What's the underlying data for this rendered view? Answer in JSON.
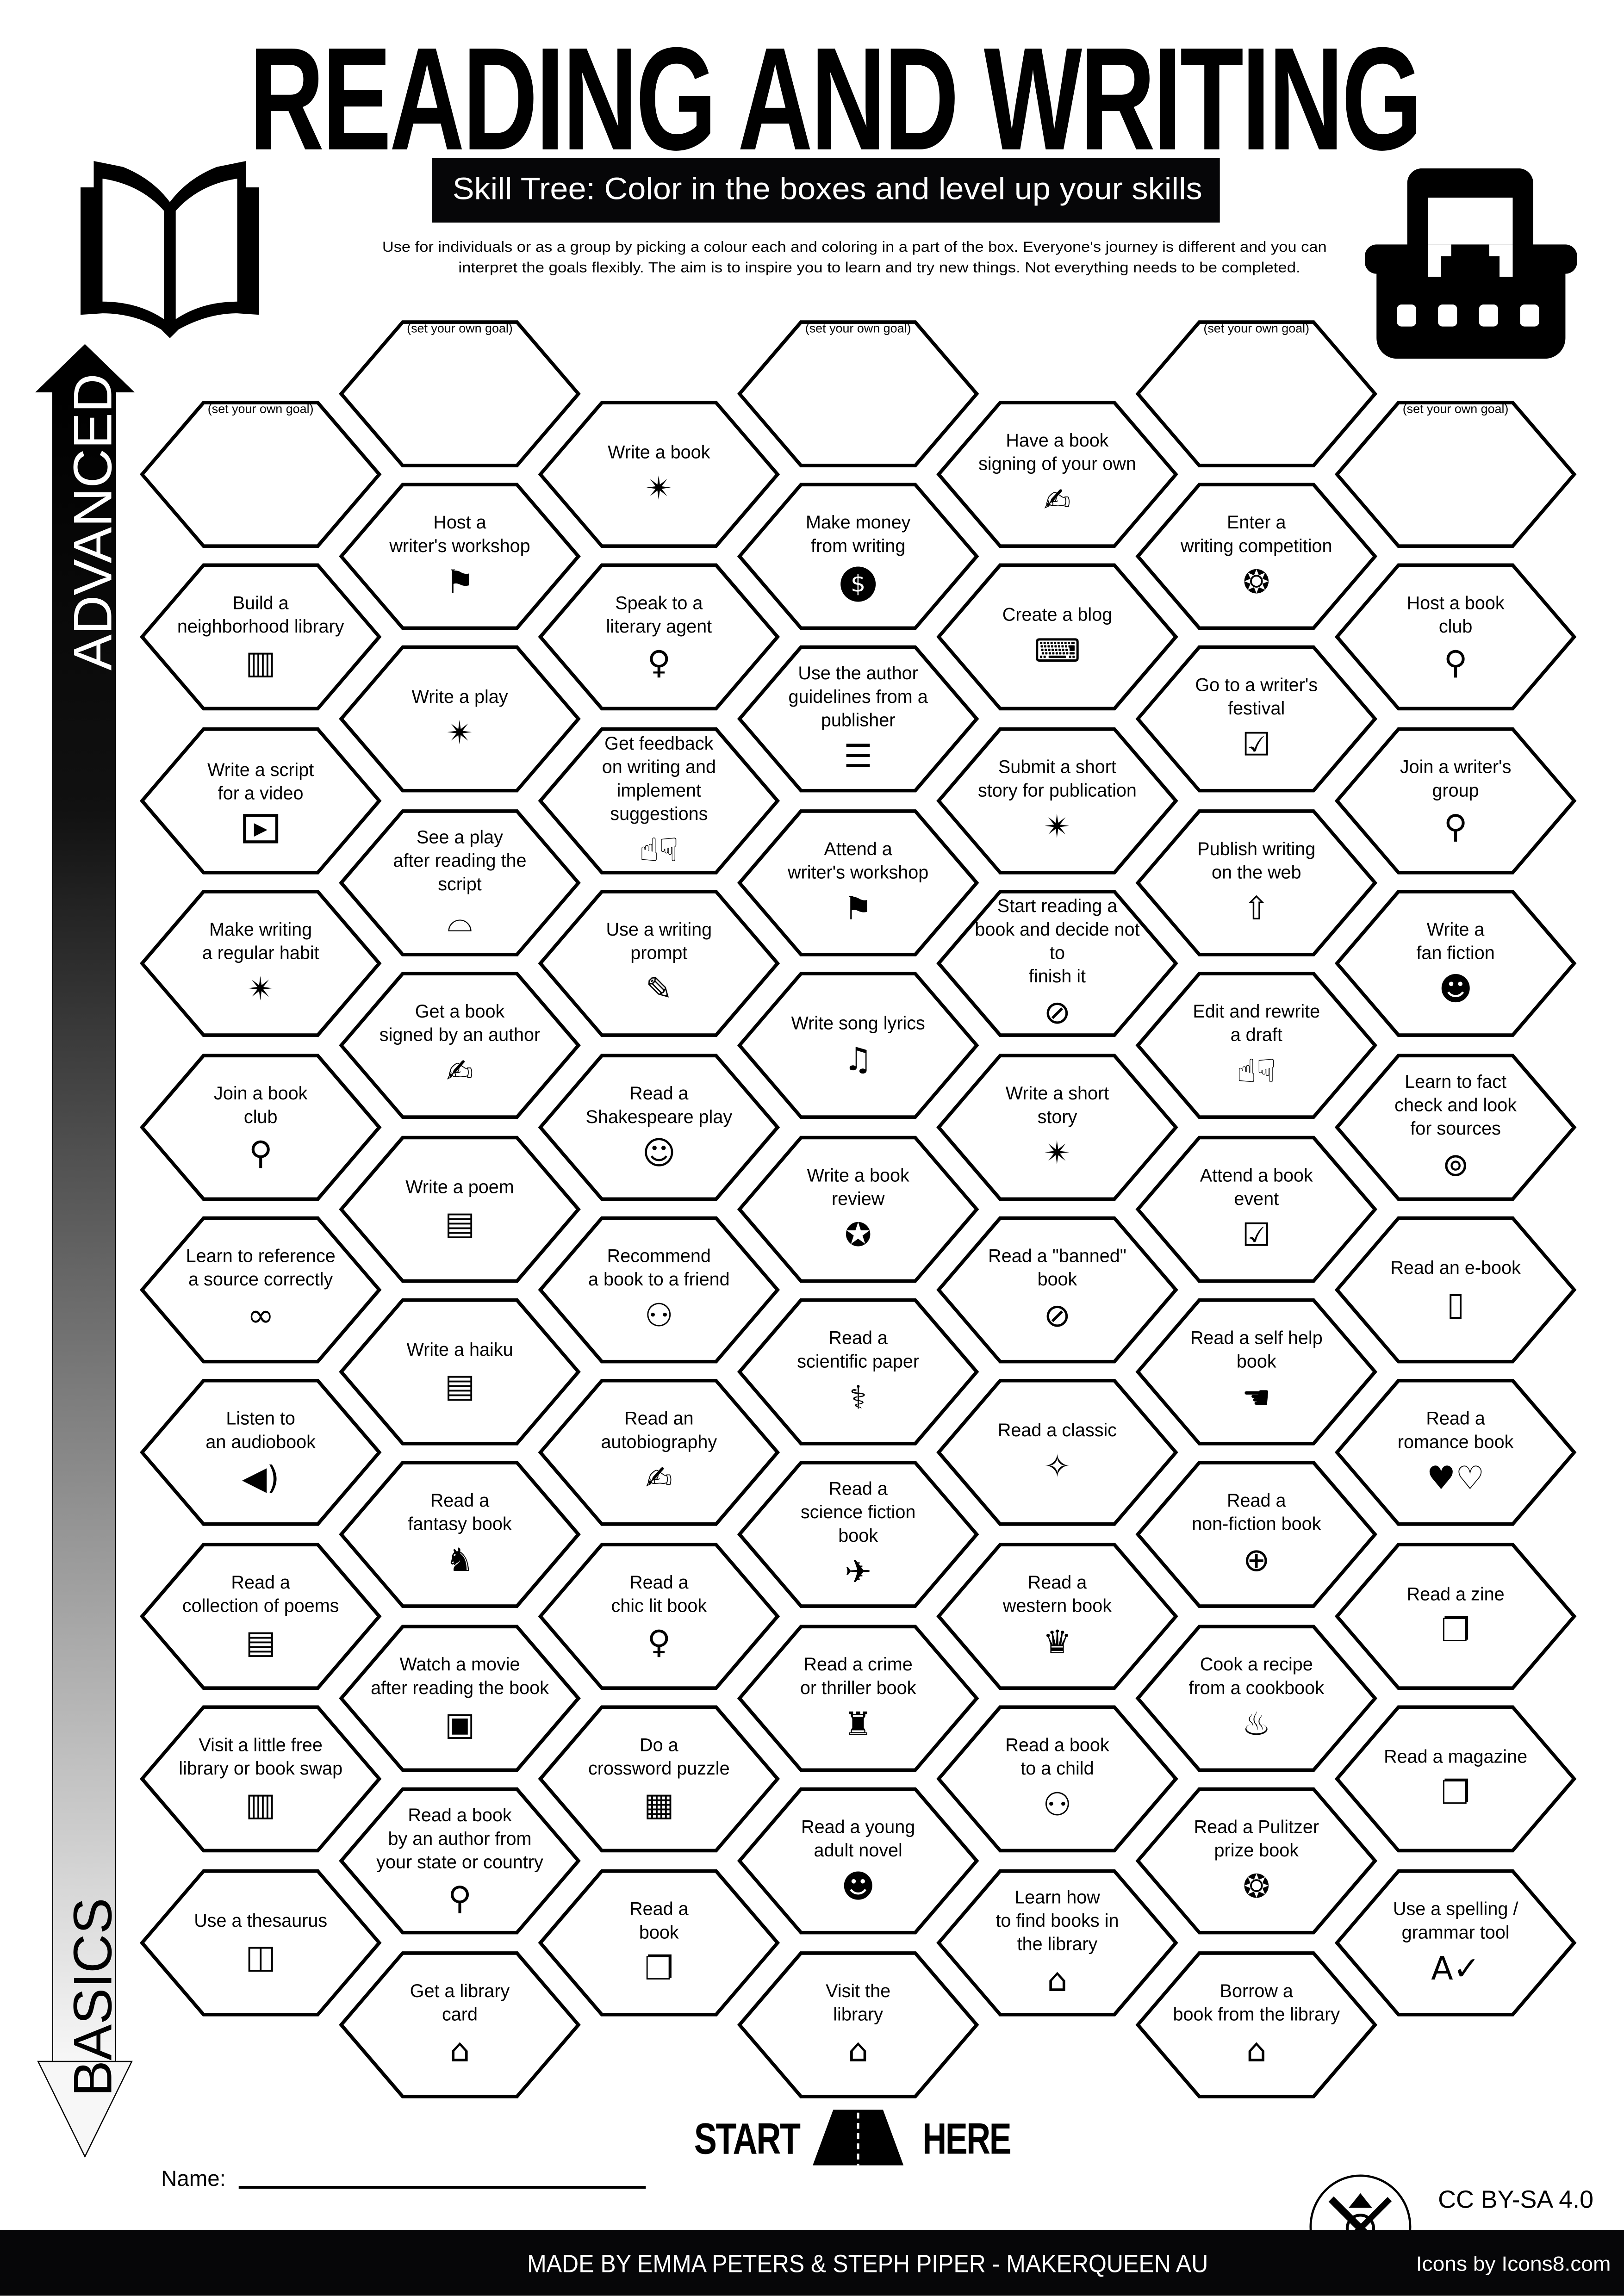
{
  "header": {
    "title": "READING AND WRITING",
    "subtitle": "Skill Tree:  Color in the boxes and level up your skills",
    "description_lines": [
      "Use for individuals or as a group by picking a colour each and coloring in a part of the box.  Everyone's journey is different and you can",
      "interpret the goals flexibly.  The aim is to inspire you to learn and try new things. Not everything needs to be completed."
    ],
    "left_icon": "open-book-icon",
    "right_icon": "typewriter-icon"
  },
  "progress_arrow": {
    "top_label": "ADVANCED",
    "bottom_label": "BASICS"
  },
  "skill_tree": {
    "columns": [
      [
        {
          "label": "(set your own goal)",
          "icon": "",
          "goal": true
        },
        {
          "label": "Build a\nneighborhood library",
          "icon": "bookshelf"
        },
        {
          "label": "Write a script\nfor a video",
          "icon": "play-video"
        },
        {
          "label": "Make writing\na regular habit",
          "icon": "book-sparkle"
        },
        {
          "label": "Join a book\nclub",
          "icon": "location-pin"
        },
        {
          "label": "Learn to reference\na source correctly",
          "icon": "link"
        },
        {
          "label": "Listen to\nan audiobook",
          "icon": "speaker"
        },
        {
          "label": "Read a\ncollection of poems",
          "icon": "poem-scroll"
        },
        {
          "label": "Visit a little free\nlibrary or book swap",
          "icon": "bookshelf"
        },
        {
          "label": "Use a thesaurus",
          "icon": "open-book"
        }
      ],
      [
        {
          "label": "(set your own goal)",
          "icon": "",
          "goal": true
        },
        {
          "label": "Host a\nwriter's workshop",
          "icon": "presentation"
        },
        {
          "label": "Write a play",
          "icon": "book-sparkle"
        },
        {
          "label": "See a play\nafter reading the\nscript",
          "icon": "theater"
        },
        {
          "label": "Get a book\nsigned by an author",
          "icon": "signature"
        },
        {
          "label": "Write a poem",
          "icon": "poem-scroll"
        },
        {
          "label": "Write a haiku",
          "icon": "poem-scroll"
        },
        {
          "label": "Read a\nfantasy book",
          "icon": "dragon"
        },
        {
          "label": "Watch a movie\nafter reading the book",
          "icon": "film"
        },
        {
          "label": "Read a book\nby an author from\nyour state or country",
          "icon": "location-pin"
        },
        {
          "label": "Get a library\ncard",
          "icon": "library"
        }
      ],
      [
        {
          "label": "Write a book",
          "icon": "book-sparkle"
        },
        {
          "label": "Speak to a\nliterary agent",
          "icon": "woman"
        },
        {
          "label": "Get feedback\non writing and\nimplement suggestions",
          "icon": "thumbs"
        },
        {
          "label": "Use a writing\nprompt",
          "icon": "pen"
        },
        {
          "label": "Read a\nShakespeare play",
          "icon": "shakespeare"
        },
        {
          "label": "Recommend\na book to a friend",
          "icon": "reading-people"
        },
        {
          "label": "Read an\nautobiography",
          "icon": "person-write"
        },
        {
          "label": "Read a\nchic lit book",
          "icon": "girl"
        },
        {
          "label": "Do a\ncrossword puzzle",
          "icon": "crossword"
        },
        {
          "label": "Read a\nbook",
          "icon": "book"
        }
      ],
      [
        {
          "label": "(set your own goal)",
          "icon": "",
          "goal": true
        },
        {
          "label": "Make money\nfrom writing",
          "icon": "money"
        },
        {
          "label": "Use the author\nguidelines from a\npublisher",
          "icon": "checklist"
        },
        {
          "label": "Attend a\nwriter's workshop",
          "icon": "presentation"
        },
        {
          "label": "Write song lyrics",
          "icon": "lyrics"
        },
        {
          "label": "Write a book\nreview",
          "icon": "review-star"
        },
        {
          "label": "Read a\nscientific paper",
          "icon": "dna"
        },
        {
          "label": "Read a\nscience fiction\nbook",
          "icon": "rocket"
        },
        {
          "label": "Read a crime\nor thriller book",
          "icon": "detective"
        },
        {
          "label": "Read a young\nadult novel",
          "icon": "young-adult"
        },
        {
          "label": "Visit the\nlibrary",
          "icon": "library"
        }
      ],
      [
        {
          "label": "Have a book\nsigning of your own",
          "icon": "signature"
        },
        {
          "label": "Create a blog",
          "icon": "typewriter"
        },
        {
          "label": "Submit a short\nstory for publication",
          "icon": "book-sparkle"
        },
        {
          "label": "Start reading a\nbook and decide not to\nfinish it",
          "icon": "no-book"
        },
        {
          "label": "Write a short\nstory",
          "icon": "book-sparkle"
        },
        {
          "label": "Read a \"banned\"\nbook",
          "icon": "no-book"
        },
        {
          "label": "Read a classic",
          "icon": "classic-book"
        },
        {
          "label": "Read a\nwestern book",
          "icon": "cowboy"
        },
        {
          "label": "Read a book\nto a child",
          "icon": "reading-people"
        },
        {
          "label": "Learn how\nto find books in\nthe library",
          "icon": "library"
        }
      ],
      [
        {
          "label": "(set your own goal)",
          "icon": "",
          "goal": true
        },
        {
          "label": "Enter a\nwriting competition",
          "icon": "award"
        },
        {
          "label": "Go to a writer's\nfestival",
          "icon": "calendar"
        },
        {
          "label": "Publish writing\non the web",
          "icon": "upload"
        },
        {
          "label": "Edit and rewrite\na draft",
          "icon": "thumbs"
        },
        {
          "label": "Attend a book\nevent",
          "icon": "calendar"
        },
        {
          "label": "Read a self help\nbook",
          "icon": "hand-heart"
        },
        {
          "label": "Read a\nnon-fiction book",
          "icon": "globe"
        },
        {
          "label": "Cook a recipe\nfrom a cookbook",
          "icon": "cooking-pot"
        },
        {
          "label": "Read a Pulitzer\nprize book",
          "icon": "award"
        },
        {
          "label": "Borrow a\nbook from the library",
          "icon": "library"
        }
      ],
      [
        {
          "label": "(set your own goal)",
          "icon": "",
          "goal": true
        },
        {
          "label": "Host a book\nclub",
          "icon": "location-pin"
        },
        {
          "label": "Join a writer's\ngroup",
          "icon": "location-pin"
        },
        {
          "label": "Write a\nfan fiction",
          "icon": "vampire"
        },
        {
          "label": "Learn to fact\ncheck and look\nfor sources",
          "icon": "magnifier"
        },
        {
          "label": "Read an e-book",
          "icon": "ebook"
        },
        {
          "label": "Read a\nromance book",
          "icon": "hearts"
        },
        {
          "label": "Read a zine",
          "icon": "book"
        },
        {
          "label": "Read a magazine",
          "icon": "book"
        },
        {
          "label": "Use a spelling /\ngrammar tool",
          "icon": "spell-check"
        }
      ]
    ]
  },
  "start": {
    "left": "START",
    "right": "HERE",
    "icon": "road-icon"
  },
  "name_field": {
    "label": "Name:",
    "value": ""
  },
  "license": "CC BY-SA 4.0",
  "footer": {
    "credit": "MADE BY EMMA PETERS & STEPH PIPER  -  MAKERQUEEN AU",
    "icons_credit": "Icons by Icons8.com",
    "logo": "makerqueen-logo"
  },
  "colors": {
    "ink": "#000000",
    "bar": "#060608",
    "paper": "#ffffff"
  }
}
